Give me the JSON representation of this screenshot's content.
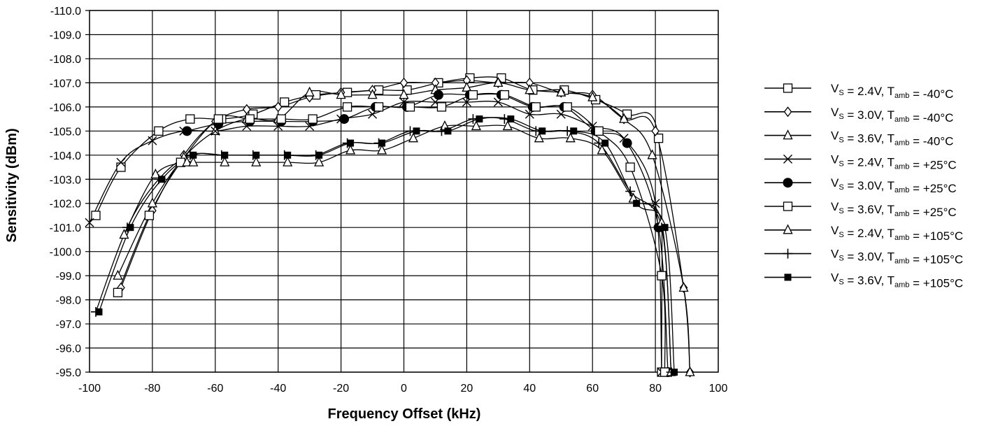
{
  "chart_data": {
    "type": "line",
    "xlabel": "Frequency Offset (kHz)",
    "ylabel": "Sensitivity (dBm)",
    "xlim": [
      -100,
      100
    ],
    "ylim": [
      -95.0,
      -110.0
    ],
    "y_axis_inverted": true,
    "grid": true,
    "legend_position": "right",
    "x_ticks": [
      "-100",
      "-80",
      "-60",
      "-40",
      "-20",
      "0",
      "20",
      "40",
      "60",
      "80",
      "100"
    ],
    "y_ticks": [
      "-110.0",
      "-109.0",
      "-108.0",
      "-107.0",
      "-106.0",
      "-105.0",
      "-104.0",
      "-103.0",
      "-102.0",
      "-101.0",
      "-100.0",
      "-99.0",
      "-98.0",
      "-97.0",
      "-96.0",
      "-95.0"
    ],
    "series": [
      {
        "vs": "2.4V",
        "tamb": "-40°C",
        "marker": "square-open",
        "x": [
          -98,
          -90,
          -78,
          -68,
          -58,
          -48,
          -38,
          -28,
          -18,
          -8,
          1,
          11,
          21,
          31,
          41,
          51,
          61,
          71,
          81,
          82
        ],
        "y": [
          -101.5,
          -103.5,
          -105.0,
          -105.5,
          -105.5,
          -105.7,
          -106.2,
          -106.5,
          -106.6,
          -106.7,
          -106.7,
          -107.0,
          -107.2,
          -107.2,
          -106.7,
          -106.7,
          -106.3,
          -105.7,
          -104.7,
          -95.0
        ]
      },
      {
        "vs": "3.0V",
        "tamb": "-40°C",
        "marker": "diamond-open",
        "x": [
          -90,
          -80,
          -70,
          -60,
          -50,
          -40,
          -30,
          -20,
          -10,
          0,
          10,
          20,
          30,
          40,
          50,
          60,
          70,
          80,
          89,
          91
        ],
        "y": [
          -98.5,
          -101.7,
          -104.0,
          -105.4,
          -105.9,
          -106.0,
          -106.4,
          -106.6,
          -106.7,
          -107.0,
          -107.0,
          -107.1,
          -107.0,
          -107.0,
          -106.6,
          -106.5,
          -105.5,
          -105.0,
          -98.5,
          -95.0
        ]
      },
      {
        "vs": "3.6V",
        "tamb": "-40°C",
        "marker": "triangle-open",
        "x": [
          -91,
          -80,
          -70,
          -60,
          -50,
          -40,
          -30,
          -20,
          -10,
          0,
          10,
          20,
          30,
          40,
          50,
          60,
          70,
          79,
          89,
          91
        ],
        "y": [
          -99.0,
          -102.0,
          -103.9,
          -105.0,
          -105.5,
          -105.5,
          -106.6,
          -106.5,
          -106.5,
          -106.5,
          -106.7,
          -106.8,
          -107.0,
          -106.7,
          -106.6,
          -106.4,
          -105.5,
          -104.0,
          -98.5,
          -95.0
        ]
      },
      {
        "vs": "2.4V",
        "tamb": "+25°C",
        "marker": "x",
        "x": [
          -100,
          -90,
          -80,
          -70,
          -60,
          -50,
          -40,
          -30,
          -20,
          -10,
          0,
          10,
          20,
          30,
          40,
          50,
          60,
          70,
          80,
          82
        ],
        "y": [
          -101.2,
          -103.7,
          -104.6,
          -105.0,
          -105.0,
          -105.2,
          -105.2,
          -105.2,
          -105.5,
          -105.7,
          -106.2,
          -106.2,
          -106.2,
          -106.2,
          -105.7,
          -105.7,
          -105.2,
          -104.7,
          -102.0,
          -95.0
        ]
      },
      {
        "vs": "3.0V",
        "tamb": "+25°C",
        "marker": "circle-filled",
        "x": [
          -69,
          -59,
          -49,
          -39,
          -29,
          -19,
          -9,
          1,
          11,
          21,
          31,
          41,
          51,
          61,
          71,
          81,
          84
        ],
        "y": [
          -105.0,
          -105.3,
          -105.4,
          -105.4,
          -105.4,
          -105.5,
          -106.0,
          -106.0,
          -106.5,
          -106.5,
          -106.5,
          -106.0,
          -106.0,
          -105.0,
          -104.5,
          -101.0,
          -95.0
        ]
      },
      {
        "vs": "3.6V",
        "tamb": "+25°C",
        "marker": "square-open",
        "x": [
          -91,
          -81,
          -71,
          -59,
          -49,
          -39,
          -29,
          -18,
          -8,
          2,
          12,
          22,
          32,
          42,
          52,
          62,
          72,
          82,
          83
        ],
        "y": [
          -98.3,
          -101.5,
          -103.7,
          -105.5,
          -105.5,
          -105.5,
          -105.5,
          -106.0,
          -106.0,
          -106.0,
          -106.0,
          -106.5,
          -106.5,
          -106.0,
          -106.0,
          -105.0,
          -103.5,
          -99.0,
          -95.0
        ]
      },
      {
        "vs": "2.4V",
        "tamb": "+105°C",
        "marker": "triangle-open",
        "x": [
          -89,
          -79,
          -69,
          -67,
          -57,
          -47,
          -37,
          -27,
          -17,
          -7,
          3,
          13,
          23,
          33,
          43,
          53,
          63,
          73,
          82,
          85
        ],
        "y": [
          -100.7,
          -103.2,
          -103.7,
          -103.7,
          -103.7,
          -103.7,
          -103.7,
          -103.7,
          -104.2,
          -104.2,
          -104.7,
          -105.2,
          -105.2,
          -105.2,
          -104.7,
          -104.7,
          -104.2,
          -102.2,
          -101.2,
          -95.0
        ]
      },
      {
        "vs": "3.0V",
        "tamb": "+105°C",
        "marker": "plus",
        "x": [
          -98,
          -88,
          -78,
          -68,
          -58,
          -48,
          -38,
          -28,
          -18,
          -8,
          2,
          12,
          22,
          32,
          42,
          52,
          62,
          72,
          82,
          85
        ],
        "y": [
          -97.5,
          -101.0,
          -103.0,
          -104.0,
          -104.0,
          -104.0,
          -104.0,
          -104.0,
          -104.5,
          -104.5,
          -105.0,
          -105.0,
          -105.5,
          -105.5,
          -105.0,
          -105.0,
          -104.5,
          -102.5,
          -101.0,
          -95.0
        ]
      },
      {
        "vs": "3.6V",
        "tamb": "+105°C",
        "marker": "square-filled",
        "x": [
          -97,
          -87,
          -77,
          -67,
          -57,
          -47,
          -37,
          -27,
          -17,
          -7,
          4,
          14,
          24,
          34,
          44,
          54,
          64,
          74,
          83,
          86
        ],
        "y": [
          -97.5,
          -101.0,
          -103.0,
          -104.0,
          -104.0,
          -104.0,
          -104.0,
          -104.0,
          -104.5,
          -104.5,
          -105.0,
          -105.0,
          -105.5,
          -105.5,
          -105.0,
          -105.0,
          -104.5,
          -102.0,
          -101.0,
          -95.0
        ]
      }
    ]
  },
  "legend_text": {
    "v_label": "V",
    "v_sub": "S",
    "t_label": "T",
    "t_sub": "amb",
    "equals": "=",
    "separator": ","
  }
}
